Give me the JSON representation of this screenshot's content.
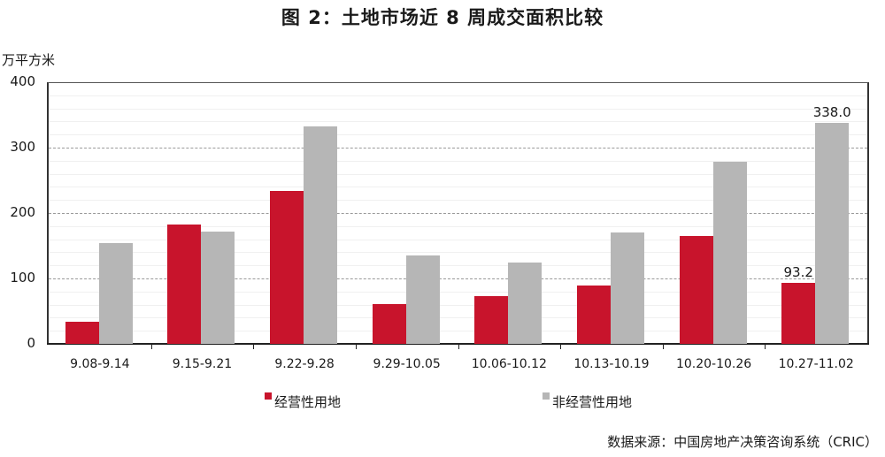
{
  "title": "图 2：土地市场近 8 周成交面积比较",
  "unit_label": "万平方米",
  "source": "数据来源：中国房地产决策咨询系统（CRIC）",
  "colors": {
    "series_1": "#c8142c",
    "series_2": "#b6b6b6"
  },
  "legend": [
    {
      "label": "经营性用地",
      "color": "#c8142c"
    },
    {
      "label": "非经营性用地",
      "color": "#b6b6b6"
    }
  ],
  "y_ticks": [
    "0",
    "100",
    "200",
    "300",
    "400"
  ],
  "x_labels": [
    "9.08-9.14",
    "9.15-9.21",
    "9.22-9.28",
    "9.29-10.05",
    "10.06-10.12",
    "10.13-10.19",
    "10.20-10.26",
    "10.27-11.02"
  ],
  "data_labels": {
    "last_series_1": "93.2",
    "last_series_2": "338.0"
  },
  "chart_data": {
    "type": "bar",
    "title": "图 2：土地市场近 8 周成交面积比较",
    "xlabel": "",
    "ylabel": "万平方米",
    "ylim": [
      0,
      400
    ],
    "yticks": [
      0,
      100,
      200,
      300,
      400
    ],
    "grid": true,
    "legend_position": "bottom",
    "categories": [
      "9.08-9.14",
      "9.15-9.21",
      "9.22-9.28",
      "9.29-10.05",
      "10.06-10.12",
      "10.13-10.19",
      "10.20-10.26",
      "10.27-11.02"
    ],
    "series": [
      {
        "name": "经营性用地",
        "color": "#c8142c",
        "values": [
          34,
          182,
          234,
          61,
          73,
          89,
          165,
          93.2
        ]
      },
      {
        "name": "非经营性用地",
        "color": "#b6b6b6",
        "values": [
          154,
          172,
          333,
          135,
          124,
          170,
          278,
          338.0
        ]
      }
    ],
    "annotations": [
      {
        "series": "经营性用地",
        "category": "10.27-11.02",
        "text": "93.2"
      },
      {
        "series": "非经营性用地",
        "category": "10.27-11.02",
        "text": "338.0"
      }
    ],
    "source": "数据来源：中国房地产决策咨询系统（CRIC）"
  }
}
